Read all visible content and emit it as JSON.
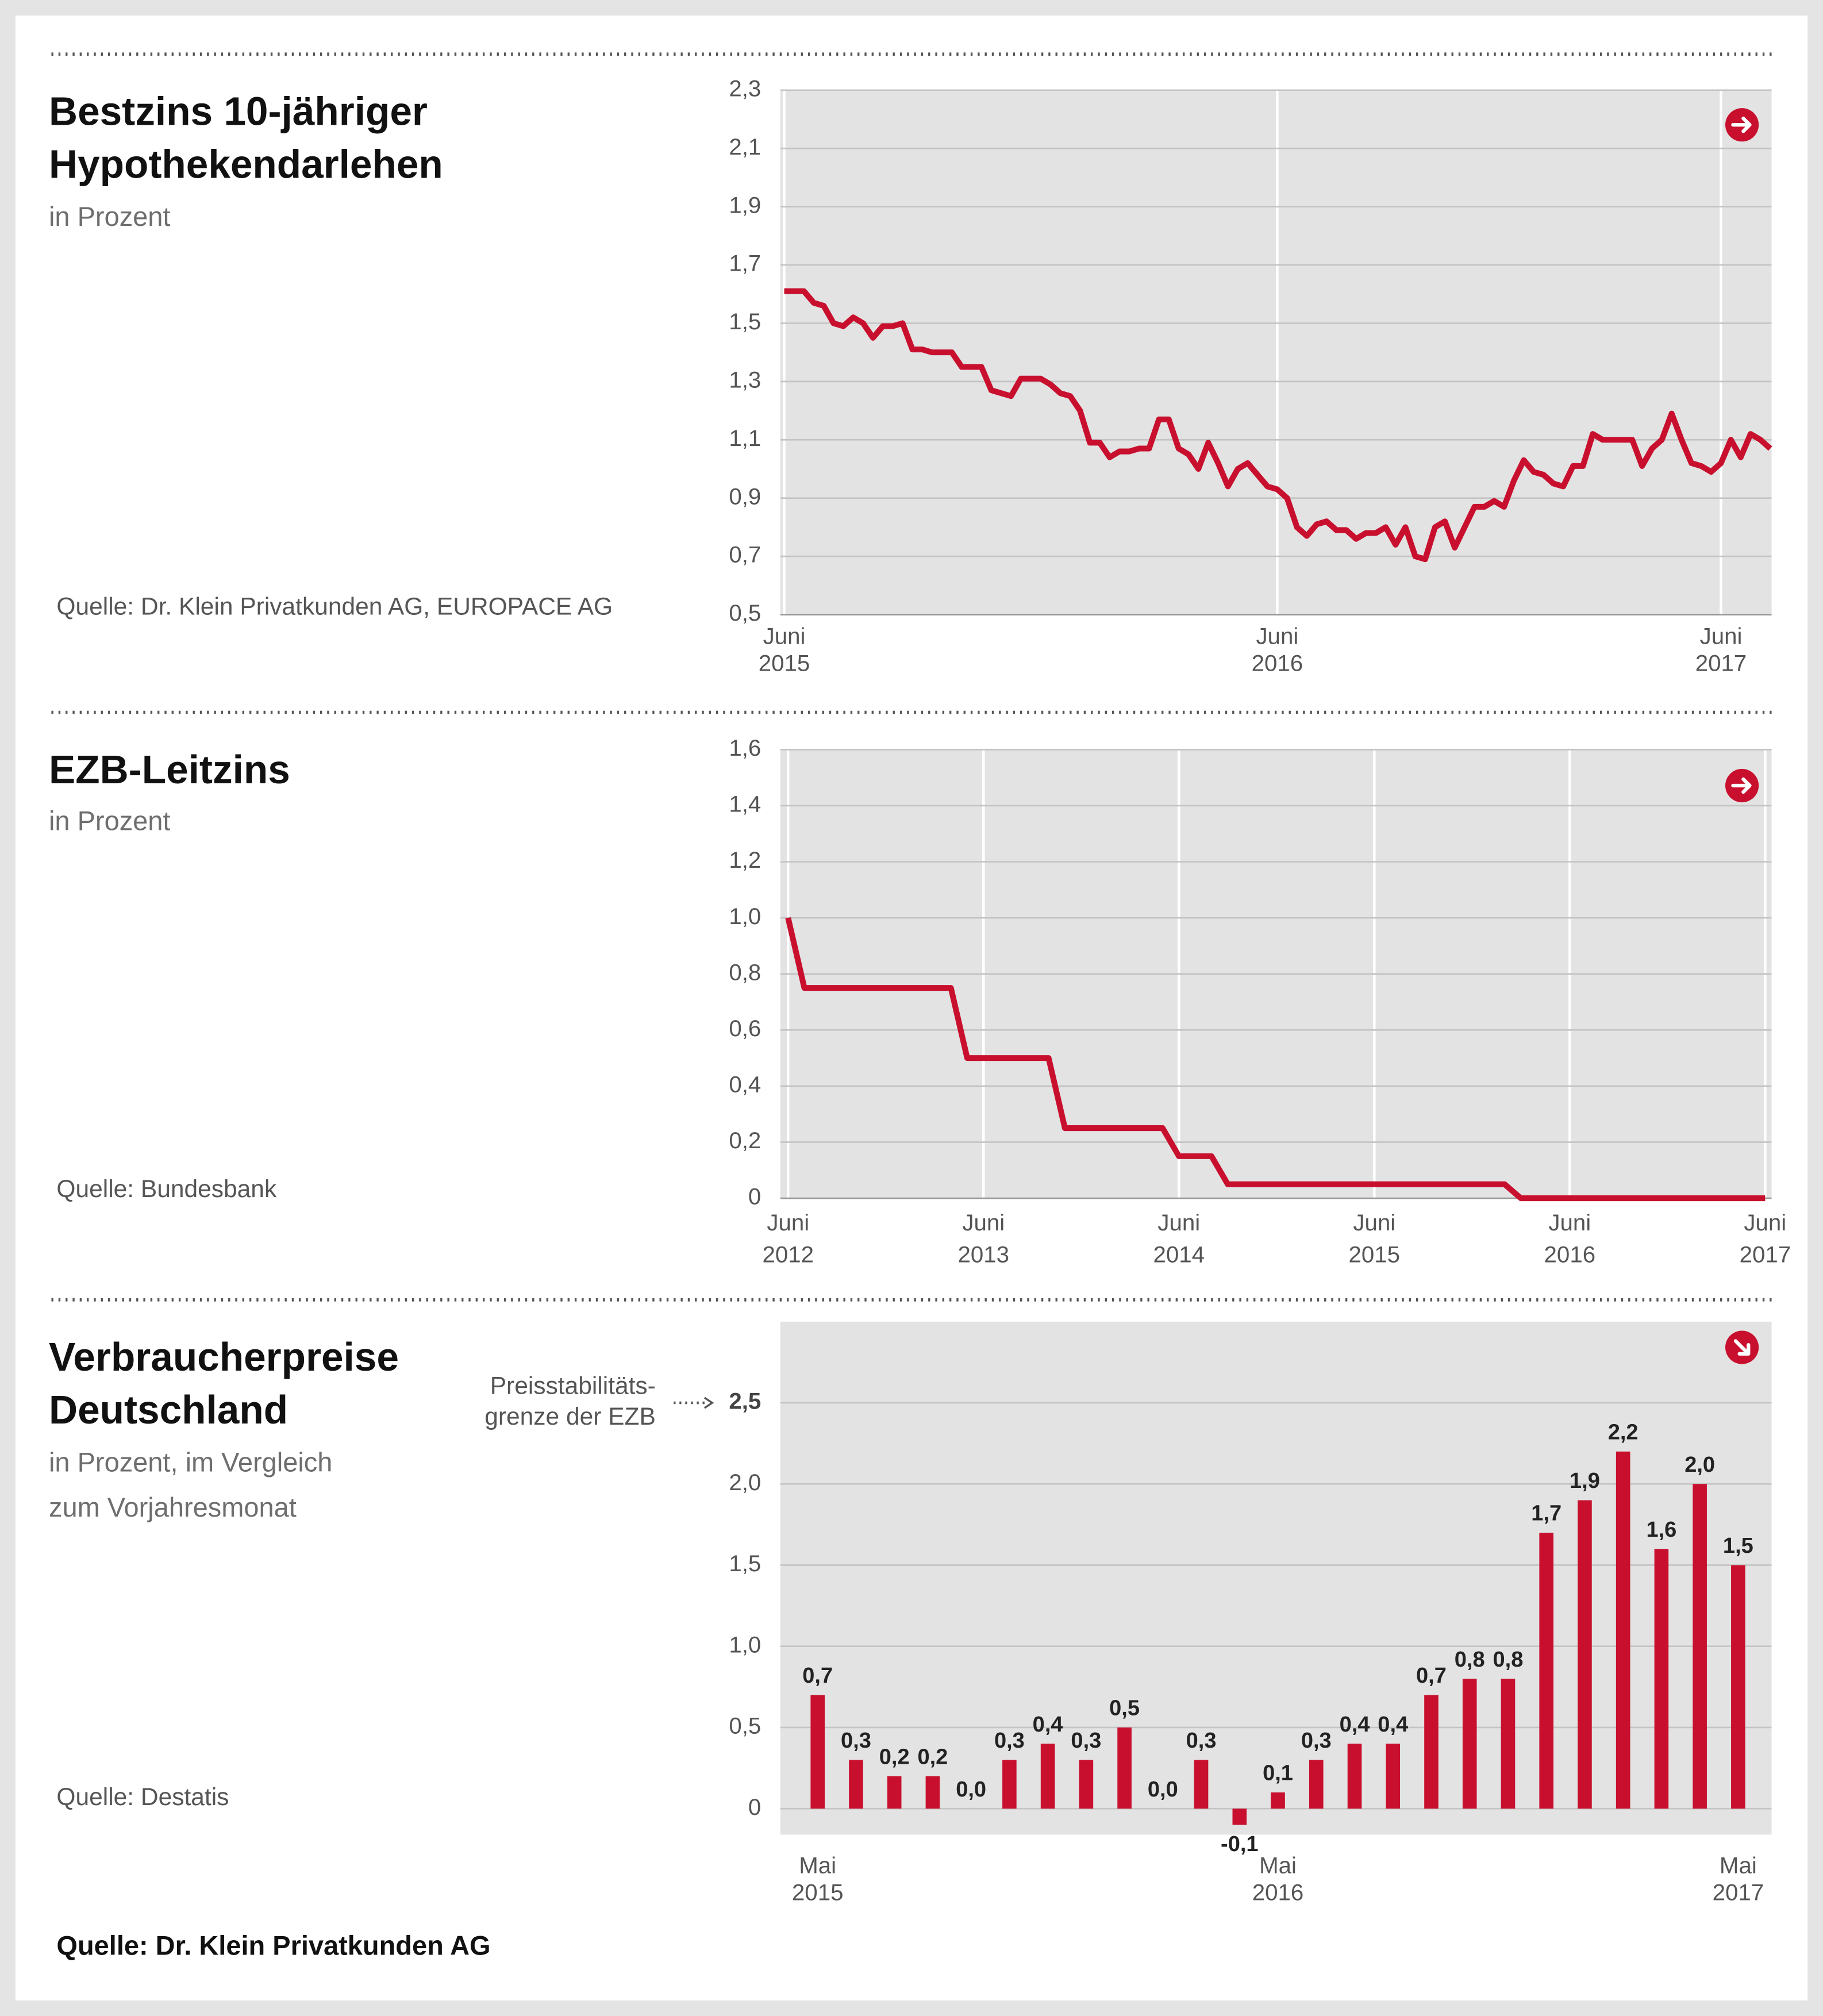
{
  "chart_data": [
    {
      "type": "line",
      "title": [
        "Bestzins 10-jähriger",
        "Hypothekendarlehen"
      ],
      "subtitle": [
        "in Prozent"
      ],
      "source": "Quelle: Dr. Klein Privatkunden AG, EUROPACE AG",
      "categories": [
        "Juni 2015",
        null,
        null,
        null,
        null,
        null,
        null,
        null,
        null,
        null,
        null,
        null,
        null,
        null,
        null,
        null,
        null,
        null,
        null,
        null,
        null,
        null,
        null,
        null,
        null,
        null,
        null,
        null,
        null,
        null,
        null,
        null,
        null,
        null,
        null,
        null,
        null,
        null,
        null,
        null,
        null,
        null,
        null,
        null,
        null,
        null,
        null,
        null,
        null,
        null,
        "Juni 2016",
        null,
        null,
        null,
        null,
        null,
        null,
        null,
        null,
        null,
        null,
        null,
        null,
        null,
        null,
        null,
        null,
        null,
        null,
        null,
        null,
        null,
        null,
        null,
        null,
        null,
        null,
        null,
        null,
        null,
        null,
        null,
        null,
        null,
        null,
        null,
        null,
        null,
        null,
        null,
        null,
        null,
        null,
        null,
        null,
        "Juni 2017",
        null,
        null,
        null,
        null,
        null
      ],
      "series": [
        {
          "name": "Bestzins",
          "color": "#c8102e",
          "values": [
            1.61,
            1.61,
            1.61,
            1.57,
            1.56,
            1.5,
            1.49,
            1.52,
            1.5,
            1.45,
            1.49,
            1.49,
            1.5,
            1.41,
            1.41,
            1.4,
            1.4,
            1.4,
            1.35,
            1.35,
            1.35,
            1.27,
            1.26,
            1.25,
            1.31,
            1.31,
            1.31,
            1.29,
            1.26,
            1.25,
            1.2,
            1.09,
            1.09,
            1.04,
            1.06,
            1.06,
            1.07,
            1.07,
            1.17,
            1.17,
            1.07,
            1.05,
            1.0,
            1.09,
            1.02,
            0.94,
            1.0,
            1.02,
            0.98,
            0.94,
            0.93,
            0.9,
            0.8,
            0.77,
            0.81,
            0.82,
            0.79,
            0.79,
            0.76,
            0.78,
            0.78,
            0.8,
            0.74,
            0.8,
            0.7,
            0.69,
            0.8,
            0.82,
            0.73,
            0.8,
            0.87,
            0.87,
            0.89,
            0.87,
            0.96,
            1.03,
            0.99,
            0.98,
            0.95,
            0.94,
            1.01,
            1.01,
            1.12,
            1.1,
            1.1,
            1.1,
            1.1,
            1.01,
            1.07,
            1.1,
            1.19,
            1.1,
            1.02,
            1.01,
            0.99,
            1.02,
            1.1,
            1.04,
            1.12,
            1.1,
            1.07
          ]
        }
      ],
      "ylim": [
        0.5,
        2.3
      ],
      "yticks": [
        0.5,
        0.7,
        0.9,
        1.1,
        1.3,
        1.5,
        1.7,
        1.9,
        2.1,
        2.3
      ],
      "ytick_labels": [
        "0,5",
        "0,7",
        "0,9",
        "1,1",
        "1,3",
        "1,5",
        "1,7",
        "1,9",
        "2,1",
        "2,3"
      ],
      "grid": true
    },
    {
      "type": "line",
      "title": [
        "EZB-Leitzins"
      ],
      "subtitle": [
        "in Prozent"
      ],
      "source": "Quelle: Bundesbank",
      "categories": [
        "Juni 2012",
        null,
        null,
        null,
        null,
        null,
        null,
        null,
        null,
        null,
        null,
        null,
        "Juni 2013",
        null,
        null,
        null,
        null,
        null,
        null,
        null,
        null,
        null,
        null,
        null,
        "Juni 2014",
        null,
        null,
        null,
        null,
        null,
        null,
        null,
        null,
        null,
        null,
        null,
        "Juni 2015",
        null,
        null,
        null,
        null,
        null,
        null,
        null,
        null,
        null,
        null,
        null,
        "Juni 2016",
        null,
        null,
        null,
        null,
        null,
        null,
        null,
        null,
        null,
        null,
        null,
        "Juni 2017"
      ],
      "series": [
        {
          "name": "Leitzins",
          "color": "#c8102e",
          "values": [
            1.0,
            0.75,
            0.75,
            0.75,
            0.75,
            0.75,
            0.75,
            0.75,
            0.75,
            0.75,
            0.75,
            0.5,
            0.5,
            0.5,
            0.5,
            0.5,
            0.5,
            0.25,
            0.25,
            0.25,
            0.25,
            0.25,
            0.25,
            0.25,
            0.15,
            0.15,
            0.15,
            0.05,
            0.05,
            0.05,
            0.05,
            0.05,
            0.05,
            0.05,
            0.05,
            0.05,
            0.05,
            0.05,
            0.05,
            0.05,
            0.05,
            0.05,
            0.05,
            0.05,
            0.05,
            0,
            0,
            0,
            0,
            0,
            0,
            0,
            0,
            0,
            0,
            0,
            0,
            0,
            0,
            0,
            0
          ]
        }
      ],
      "ylim": [
        0,
        1.6
      ],
      "yticks": [
        0,
        0.2,
        0.4,
        0.6,
        0.8,
        1.0,
        1.2,
        1.4,
        1.6
      ],
      "ytick_labels": [
        "0",
        "0,2",
        "0,4",
        "0,6",
        "0,8",
        "1,0",
        "1,2",
        "1,4",
        "1,6"
      ],
      "grid": true
    },
    {
      "type": "bar",
      "title": [
        "Verbraucherpreise",
        "Deutschland"
      ],
      "subtitle": [
        "in Prozent, im Vergleich",
        "zum Vorjahresmonat"
      ],
      "source": "Quelle: Destatis",
      "annotation": [
        "Preisstabilitäts-",
        "grenze der EZB"
      ],
      "categories": [
        "Mai 2015",
        null,
        null,
        null,
        null,
        null,
        null,
        null,
        null,
        null,
        null,
        null,
        "Mai 2016",
        null,
        null,
        null,
        null,
        null,
        null,
        null,
        null,
        null,
        null,
        null,
        "Mai 2017"
      ],
      "series": [
        {
          "name": "Verbraucherpreise",
          "color": "#c8102e",
          "values": [
            0.7,
            0.3,
            0.2,
            0.2,
            0.0,
            0.3,
            0.4,
            0.3,
            0.5,
            0.0,
            0.3,
            -0.1,
            0.1,
            0.3,
            0.4,
            0.4,
            0.7,
            0.8,
            0.8,
            1.7,
            1.9,
            2.2,
            1.6,
            2.0,
            1.5
          ],
          "value_labels": [
            "0,7",
            "0,3",
            "0,2",
            "0,2",
            "0,0",
            "0,3",
            "0,4",
            "0,3",
            "0,5",
            "0,0",
            "0,3",
            "-0,1",
            "0,1",
            "0,3",
            "0,4",
            "0,4",
            "0,7",
            "0,8",
            "0,8",
            "1,7",
            "1,9",
            "2,2",
            "1,6",
            "2,0",
            "1,5"
          ]
        }
      ],
      "ylim": [
        -0.16,
        3.0
      ],
      "yticks": [
        0,
        0.5,
        1.0,
        1.5,
        2.0,
        2.5
      ],
      "ytick_labels": [
        "0",
        "0,5",
        "1,0",
        "1,5",
        "2,0",
        "2,5"
      ],
      "grid": true
    }
  ],
  "footer": "Quelle: Dr. Klein Privatkunden AG"
}
